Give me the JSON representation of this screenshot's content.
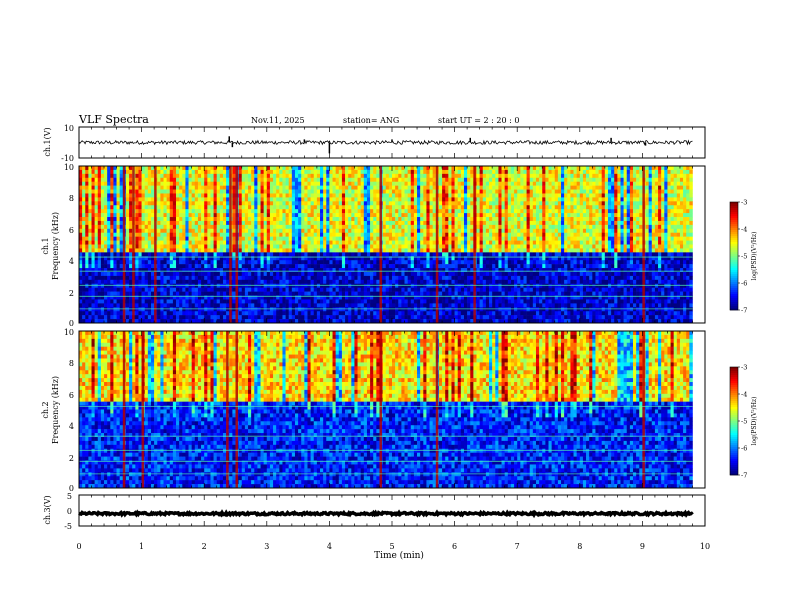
{
  "header": {
    "title": "VLF Spectra",
    "date": "Nov.11, 2025",
    "station": "station= ANG",
    "start": "start  UT =   2  : 20 : 0"
  },
  "chart_data": [
    {
      "id": "ch1-waveform",
      "type": "line",
      "ylabel": "ch.1(V)",
      "ylim": [
        -10,
        10
      ],
      "yticks": [
        "10",
        "-10"
      ],
      "baseline": 0,
      "noise_amplitude": 1.2,
      "spikes": [
        {
          "x": 2.4,
          "y": 4
        },
        {
          "x": 2.45,
          "y": -3
        },
        {
          "x": 3.6,
          "y": 2
        },
        {
          "x": 4.0,
          "y": -7
        },
        {
          "x": 5.0,
          "y": 2
        },
        {
          "x": 6.25,
          "y": 3
        },
        {
          "x": 8.5,
          "y": 3
        },
        {
          "x": 9.05,
          "y": -2
        }
      ]
    },
    {
      "id": "ch1-spectrogram",
      "type": "heatmap",
      "ylabel_top": "ch.1",
      "ylabel": "Frequency  (kHz)",
      "ylim": [
        0,
        10
      ],
      "yticks": [
        "0",
        "2",
        "4",
        "6",
        "8",
        "10"
      ],
      "colorbar": {
        "label": "log(PSD)(V²/Hz)",
        "ticks": [
          "-3",
          "-4",
          "-5",
          "-6",
          "-7"
        ],
        "range": [
          -7,
          -3
        ]
      },
      "level_upper_band": -4.6,
      "level_lower_band": -6.7,
      "band_edge_khz": 4.5,
      "bright_impulses_min": [
        0.7,
        0.85,
        1.2,
        2.4,
        2.5,
        4.8,
        5.7,
        6.3,
        9.0
      ]
    },
    {
      "id": "ch2-spectrogram",
      "type": "heatmap",
      "ylabel_top": "ch.2",
      "ylabel": "Frequency  (kHz)",
      "ylim": [
        0,
        10
      ],
      "yticks": [
        "0",
        "2",
        "4",
        "6",
        "8",
        "10"
      ],
      "colorbar": {
        "label": "log(PSD)(V²/Hz)",
        "ticks": [
          "-3",
          "-4",
          "-5",
          "-6",
          "-7"
        ],
        "range": [
          -7,
          -3
        ]
      },
      "level_upper_band": -4.4,
      "level_lower_band": -6.4,
      "band_edge_khz": 5.5,
      "bright_impulses_min": [
        0.7,
        1.0,
        2.35,
        2.5,
        4.8,
        5.7,
        9.0
      ]
    },
    {
      "id": "ch3-waveform",
      "type": "line",
      "ylabel": "ch.3(V)",
      "ylim": [
        -5,
        5
      ],
      "yticks": [
        "5",
        "0",
        "-5"
      ],
      "baseline": -1,
      "noise_amplitude": 0.35
    }
  ],
  "xaxis": {
    "label": "Time  (min)",
    "range": [
      0,
      10
    ],
    "data_end": 9.8,
    "ticks": [
      "0",
      "1",
      "2",
      "3",
      "4",
      "5",
      "6",
      "7",
      "8",
      "9",
      "10"
    ]
  }
}
